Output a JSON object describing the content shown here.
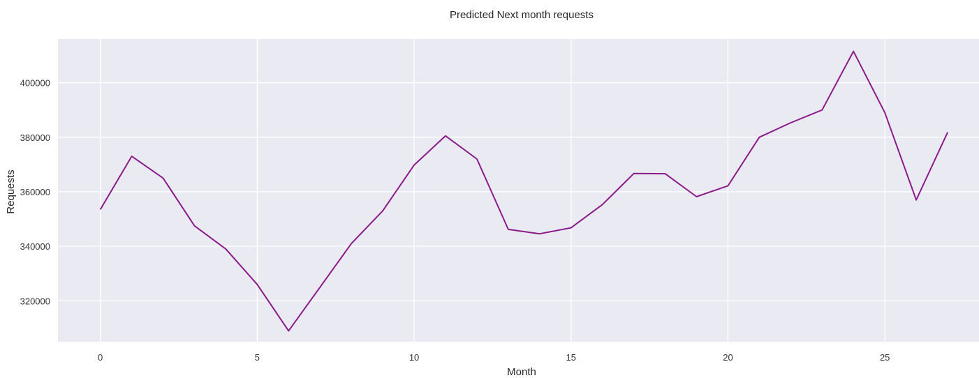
{
  "chart_data": {
    "type": "line",
    "title": "Predicted Next month requests",
    "xlabel": "Month",
    "ylabel": "Requests",
    "x": [
      0,
      1,
      2,
      3,
      4,
      5,
      6,
      7,
      8,
      9,
      10,
      11,
      12,
      13,
      14,
      15,
      16,
      17,
      18,
      19,
      20,
      21,
      22,
      23,
      24,
      25,
      26,
      27
    ],
    "series": [
      {
        "values": [
          353500,
          373000,
          365000,
          347500,
          339000,
          326000,
          309000,
          325000,
          341000,
          353000,
          369800,
          380500,
          372000,
          346200,
          344600,
          346800,
          355300,
          366700,
          366600,
          358200,
          362200,
          380000,
          385300,
          390000,
          411500,
          389000,
          357000,
          381800
        ],
        "color": "#8b1a8b"
      }
    ],
    "xlim": [
      -1.35,
      28.0
    ],
    "ylim": [
      305000,
      416000
    ],
    "xticks": [
      0,
      5,
      10,
      15,
      20,
      25
    ],
    "xtick_labels": [
      "0",
      "5",
      "10",
      "15",
      "20",
      "25"
    ],
    "yticks": [
      320000,
      340000,
      360000,
      380000,
      400000
    ],
    "ytick_labels": [
      "320000",
      "340000",
      "360000",
      "380000",
      "400000"
    ],
    "grid": true,
    "background": "#eaeaf2",
    "grid_color": "#ffffff",
    "legend": "none"
  }
}
